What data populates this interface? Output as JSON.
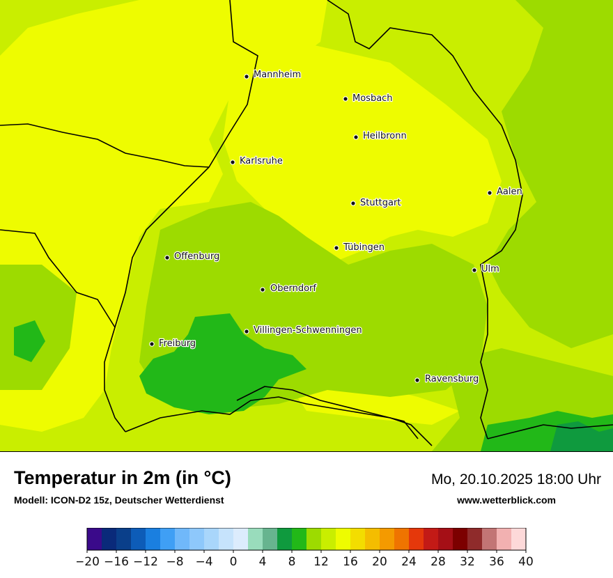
{
  "header": {
    "title": "Temperatur in 2m (in °C)",
    "model": "Modell: ICON-D2 15z, Deutscher Wetterdienst",
    "datetime": "Mo, 20.10.2025 18:00 Uhr",
    "website": "www.wetterblick.com"
  },
  "cities": [
    {
      "name": "Mannheim"
    },
    {
      "name": "Mosbach"
    },
    {
      "name": "Heilbronn"
    },
    {
      "name": "Karlsruhe"
    },
    {
      "name": "Aalen"
    },
    {
      "name": "Stuttgart"
    },
    {
      "name": "Tübingen"
    },
    {
      "name": "Offenburg"
    },
    {
      "name": "Ulm"
    },
    {
      "name": "Oberndorf"
    },
    {
      "name": "Villingen-Schwenningen"
    },
    {
      "name": "Freiburg"
    },
    {
      "name": "Ravensburg"
    }
  ],
  "legend": {
    "unit": "°C",
    "ticks": [
      "−20",
      "−16",
      "−12",
      "−8",
      "−4",
      "0",
      "4",
      "8",
      "12",
      "16",
      "20",
      "24",
      "28",
      "32",
      "36",
      "40"
    ],
    "colors": [
      "#3a0a8a",
      "#0a2a7a",
      "#0a3f8a",
      "#0d5cb8",
      "#1a7fe0",
      "#3f9ff5",
      "#70b8fa",
      "#8ec8fb",
      "#a9d6fb",
      "#c6e3fc",
      "#dcecfd",
      "#99dcbc",
      "#67b48f",
      "#0f9a3e",
      "#22b818",
      "#9ddb00",
      "#c9ee00",
      "#eefc00",
      "#f3dd00",
      "#f4bd00",
      "#f49a00",
      "#ef7400",
      "#e5380b",
      "#c31a16",
      "#a50f16",
      "#7c0000",
      "#8f2b2b",
      "#c27575",
      "#f2b1b1",
      "#fdd9d9"
    ]
  }
}
